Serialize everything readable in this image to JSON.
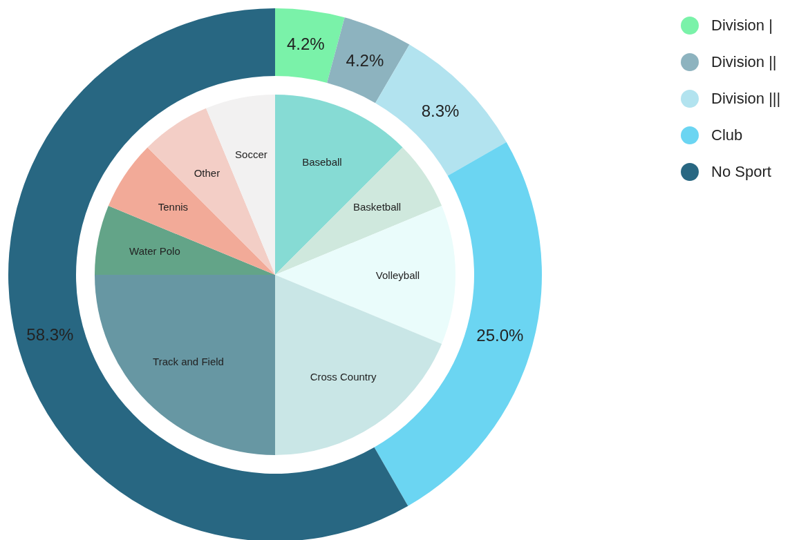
{
  "chart_data": [
    {
      "type": "donut",
      "categories": [
        "Division |",
        "Division ||",
        "Division |||",
        "Club",
        "No Sport"
      ],
      "values": [
        4.2,
        4.2,
        8.3,
        25.0,
        58.3
      ],
      "colors": [
        "#7af2a9",
        "#8db3bf",
        "#b2e3ef",
        "#6bd5f2",
        "#286782"
      ],
      "value_labels": [
        "4.2%",
        "4.2%",
        "8.3%",
        "25.0%",
        "58.3%"
      ],
      "legend": "top right"
    },
    {
      "type": "pie",
      "categories": [
        "Baseball",
        "Basketball",
        "Volleyball",
        "Cross Country",
        "Track and Field",
        "Water Polo",
        "Tennis",
        "Other",
        "Soccer"
      ],
      "values": [
        12.5,
        6.25,
        12.5,
        18.75,
        25,
        6.25,
        6.25,
        6.25,
        6.25
      ],
      "colors": [
        "#86dbd4",
        "#cfe8dd",
        "#eafcfb",
        "#c9e6e6",
        "#6797a3",
        "#63a488",
        "#f2aa98",
        "#f3cec6",
        "#f2f1f1"
      ],
      "legend": false
    }
  ]
}
